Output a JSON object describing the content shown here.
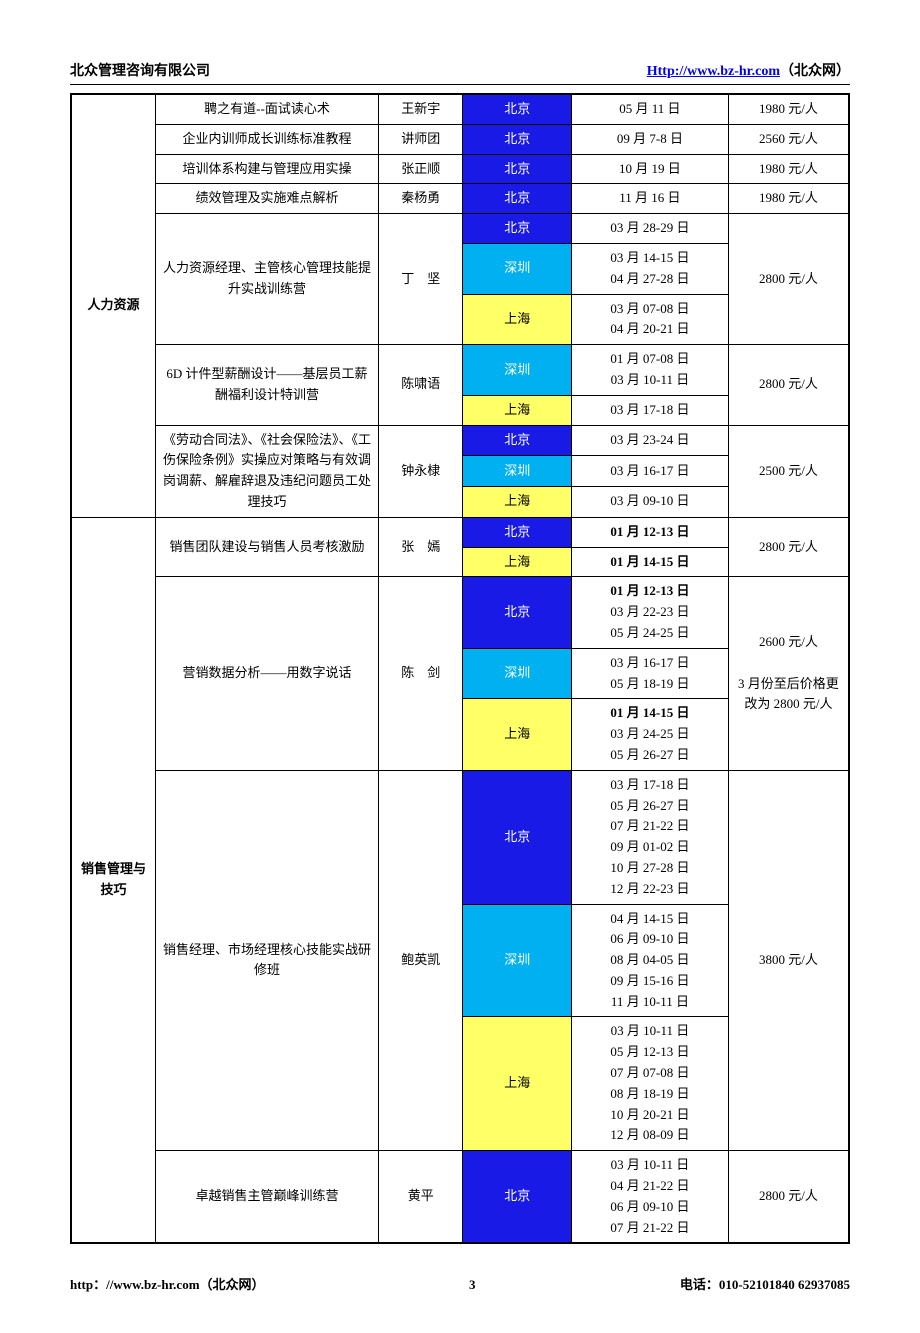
{
  "header": {
    "left": "北众管理咨询有限公司",
    "right_link": "Http://www.bz-hr.com",
    "right_suffix": "（北众网）"
  },
  "footer": {
    "left": "http：//www.bz-hr.com（北众网）",
    "page": "3",
    "right": "电话：010-52101840    62937085"
  },
  "colors": {
    "beijing": "#1a1ae6",
    "shenzhen": "#00b0f0",
    "shanghai": "#ffff66",
    "shanghai_text": "#000000",
    "city_text": "#ffffff"
  },
  "categories": [
    {
      "name": "人力资源",
      "courses": [
        {
          "title": "聘之有道--面试读心术",
          "instructor": "王新宇",
          "rows": [
            {
              "city": "北京",
              "dates": [
                "05 月 11 日"
              ]
            }
          ],
          "price": "1980 元/人"
        },
        {
          "title": "企业内训师成长训练标准教程",
          "instructor": "讲师团",
          "rows": [
            {
              "city": "北京",
              "dates": [
                "09 月 7-8 日"
              ]
            }
          ],
          "price": "2560 元/人"
        },
        {
          "title": "培训体系构建与管理应用实操",
          "instructor": "张正顺",
          "rows": [
            {
              "city": "北京",
              "dates": [
                "10 月 19 日"
              ]
            }
          ],
          "price": "1980 元/人"
        },
        {
          "title": "绩效管理及实施难点解析",
          "instructor": "秦杨勇",
          "rows": [
            {
              "city": "北京",
              "dates": [
                "11 月 16 日"
              ]
            }
          ],
          "price": "1980 元/人"
        },
        {
          "title": "人力资源经理、主管核心管理技能提升实战训练营",
          "instructor": "丁　坚",
          "rows": [
            {
              "city": "北京",
              "dates": [
                "03 月 28-29 日"
              ]
            },
            {
              "city": "深圳",
              "dates": [
                "03 月 14-15 日",
                "04 月 27-28 日"
              ]
            },
            {
              "city": "上海",
              "dates": [
                "03 月 07-08 日",
                "04 月 20-21 日"
              ]
            }
          ],
          "price": "2800 元/人"
        },
        {
          "title": "6D 计件型薪酬设计——基层员工薪酬福利设计特训营",
          "instructor": "陈啸语",
          "rows": [
            {
              "city": "深圳",
              "dates": [
                "01 月 07-08 日",
                "03 月 10-11 日"
              ]
            },
            {
              "city": "上海",
              "dates": [
                "03 月 17-18 日"
              ]
            }
          ],
          "price": "2800 元/人"
        },
        {
          "title": "《劳动合同法》、《社会保险法》、《工伤保险条例》实操应对策略与有效调岗调薪、解雇辞退及违纪问题员工处理技巧",
          "instructor": "钟永棣",
          "rows": [
            {
              "city": "北京",
              "dates": [
                "03 月 23-24 日"
              ]
            },
            {
              "city": "深圳",
              "dates": [
                "03 月 16-17 日"
              ]
            },
            {
              "city": "上海",
              "dates": [
                "03 月 09-10 日"
              ]
            }
          ],
          "price": "2500 元/人"
        }
      ]
    },
    {
      "name": "销售管理与技巧",
      "courses": [
        {
          "title": "销售团队建设与销售人员考核激励",
          "instructor": "张　嫣",
          "rows": [
            {
              "city": "北京",
              "dates": [
                "01 月 12-13 日"
              ],
              "bold": true
            },
            {
              "city": "上海",
              "dates": [
                "01 月 14-15 日"
              ],
              "bold": true
            }
          ],
          "price": "2800 元/人"
        },
        {
          "title": "营销数据分析——用数字说话",
          "instructor": "陈　剑",
          "rows": [
            {
              "city": "北京",
              "dates": [
                "01 月 12-13 日",
                "03 月 22-23 日",
                "05 月 24-25 日"
              ],
              "bold_first": true
            },
            {
              "city": "深圳",
              "dates": [
                "03 月 16-17 日",
                "05 月 18-19 日"
              ]
            },
            {
              "city": "上海",
              "dates": [
                "01 月 14-15 日",
                "03 月 24-25 日",
                "05 月 26-27 日"
              ],
              "bold_first": true
            }
          ],
          "price": "2600 元/人\n\n3 月份至后价格更改为 2800 元/人",
          "price_multiline": true
        },
        {
          "title": "销售经理、市场经理核心技能实战研修班",
          "instructor": "鲍英凯",
          "rows": [
            {
              "city": "北京",
              "dates": [
                "03 月 17-18 日",
                "05 月 26-27 日",
                "07 月 21-22 日",
                "09 月 01-02 日",
                "10 月 27-28 日",
                "12 月 22-23 日"
              ]
            },
            {
              "city": "深圳",
              "dates": [
                "04 月 14-15 日",
                "06 月 09-10 日",
                "08 月 04-05 日",
                "09 月 15-16 日",
                "11 月 10-11 日"
              ]
            },
            {
              "city": "上海",
              "dates": [
                "03 月 10-11 日",
                "05 月 12-13 日",
                "07 月 07-08 日",
                "08 月 18-19 日",
                "10 月 20-21 日",
                "12 月 08-09 日"
              ]
            }
          ],
          "price": "3800 元/人"
        },
        {
          "title": "卓越销售主管巅峰训练营",
          "instructor": "黄平",
          "rows": [
            {
              "city": "北京",
              "dates": [
                "03 月 10-11 日",
                "04 月 21-22 日",
                "06 月 09-10 日",
                "07 月 21-22 日"
              ]
            }
          ],
          "price": "2800 元/人"
        }
      ]
    }
  ]
}
